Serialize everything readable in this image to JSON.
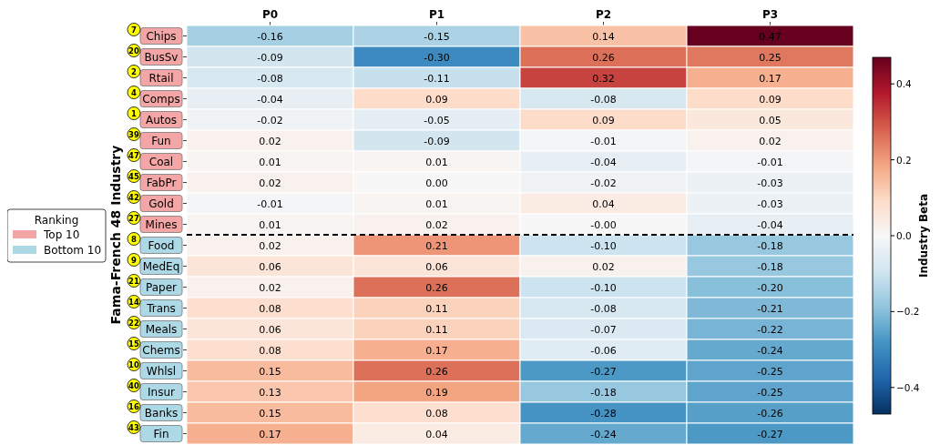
{
  "chart_data": {
    "type": "heatmap",
    "ylabel": "Fama-French 48 Industry",
    "clabel": "Industry Beta",
    "legend_title": "Ranking",
    "legend": "left",
    "categories": [
      "P0",
      "P1",
      "P2",
      "P3"
    ],
    "y_categories": [
      "Chips",
      "BusSv",
      "Rtail",
      "Comps",
      "Autos",
      "Fun",
      "Coal",
      "FabPr",
      "Gold",
      "Mines",
      "Food",
      "MedEq",
      "Paper",
      "Trans",
      "Meals",
      "Chems",
      "Whlsl",
      "Insur",
      "Banks",
      "Fin"
    ],
    "y2_categories": [
      "7",
      "20",
      "2",
      "4",
      "1",
      "39",
      "47",
      "45",
      "42",
      "27",
      "8",
      "9",
      "21",
      "14",
      "22",
      "15",
      "10",
      "40",
      "16",
      "43"
    ],
    "series": [
      {
        "name": "Top 10",
        "color": "#f4a6a6",
        "values": [
          null,
          null,
          null,
          null
        ]
      },
      {
        "name": "Bottom 10",
        "color": "#add8e6",
        "values": [
          null,
          null,
          null,
          null
        ]
      }
    ],
    "cells": [
      [
        -0.16,
        -0.15,
        0.14,
        0.47
      ],
      [
        -0.09,
        -0.3,
        0.26,
        0.25
      ],
      [
        -0.08,
        -0.11,
        0.32,
        0.17
      ],
      [
        -0.04,
        0.09,
        -0.08,
        0.09
      ],
      [
        -0.02,
        -0.05,
        0.09,
        0.05
      ],
      [
        0.02,
        -0.09,
        -0.01,
        0.02
      ],
      [
        0.01,
        0.01,
        -0.04,
        -0.01
      ],
      [
        0.02,
        0.0,
        -0.02,
        -0.03
      ],
      [
        -0.01,
        0.01,
        0.04,
        -0.03
      ],
      [
        0.01,
        0.02,
        0,
        -0.04
      ],
      [
        0.02,
        0.21,
        -0.1,
        -0.18
      ],
      [
        0.06,
        0.06,
        0.02,
        -0.18
      ],
      [
        0.02,
        0.26,
        -0.1,
        -0.2
      ],
      [
        0.08,
        0.11,
        -0.08,
        -0.21
      ],
      [
        0.06,
        0.11,
        -0.07,
        -0.22
      ],
      [
        0.08,
        0.17,
        -0.06,
        -0.24
      ],
      [
        0.15,
        0.26,
        -0.27,
        -0.25
      ],
      [
        0.13,
        0.19,
        -0.18,
        -0.25
      ],
      [
        0.15,
        0.08,
        -0.28,
        -0.26
      ],
      [
        0.17,
        0.04,
        -0.24,
        -0.27
      ]
    ],
    "cell_labels": [
      [
        "-0.16",
        "-0.15",
        "0.14",
        "0.47"
      ],
      [
        "-0.09",
        "-0.30",
        "0.26",
        "0.25"
      ],
      [
        "-0.08",
        "-0.11",
        "0.32",
        "0.17"
      ],
      [
        "-0.04",
        "0.09",
        "-0.08",
        "0.09"
      ],
      [
        "-0.02",
        "-0.05",
        "0.09",
        "0.05"
      ],
      [
        "0.02",
        "-0.09",
        "-0.01",
        "0.02"
      ],
      [
        "0.01",
        "0.01",
        "-0.04",
        "-0.01"
      ],
      [
        "0.02",
        "0.00",
        "-0.02",
        "-0.03"
      ],
      [
        "-0.01",
        "0.01",
        "0.04",
        "-0.03"
      ],
      [
        "0.01",
        "0.02",
        "-0.00",
        "-0.04"
      ],
      [
        "0.02",
        "0.21",
        "-0.10",
        "-0.18"
      ],
      [
        "0.06",
        "0.06",
        "0.02",
        "-0.18"
      ],
      [
        "0.02",
        "0.26",
        "-0.10",
        "-0.20"
      ],
      [
        "0.08",
        "0.11",
        "-0.08",
        "-0.21"
      ],
      [
        "0.06",
        "0.11",
        "-0.07",
        "-0.22"
      ],
      [
        "0.08",
        "0.17",
        "-0.06",
        "-0.24"
      ],
      [
        "0.15",
        "0.26",
        "-0.27",
        "-0.25"
      ],
      [
        "0.13",
        "0.19",
        "-0.18",
        "-0.25"
      ],
      [
        "0.15",
        "0.08",
        "-0.28",
        "-0.26"
      ],
      [
        "0.17",
        "0.04",
        "-0.24",
        "-0.27"
      ]
    ],
    "clim": [
      -0.47,
      0.47
    ],
    "cticks": [
      -0.4,
      -0.2,
      {
        "value": 0,
        "label": "0.0"
      },
      0.2,
      0.4
    ]
  }
}
